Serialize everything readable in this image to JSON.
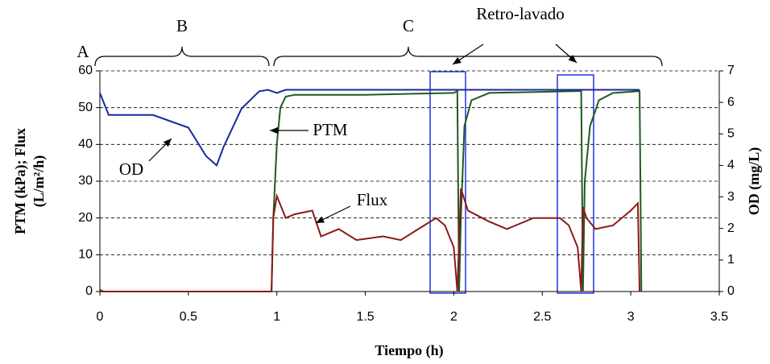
{
  "chart_data": {
    "type": "line",
    "xlabel": "Tiempo (h)",
    "ylabel": [
      "PTM (kPa); Flux",
      "(L/m²/h)"
    ],
    "y2label": "OD (mg/L)",
    "xlim": [
      0,
      3.5
    ],
    "xticks": [
      0,
      0.5,
      1,
      1.5,
      2,
      2.5,
      3,
      3.5
    ],
    "ylim": [
      0,
      60
    ],
    "yticks": [
      0,
      10,
      20,
      30,
      40,
      50,
      60
    ],
    "y2lim": [
      0,
      7
    ],
    "y2ticks": [
      0,
      1,
      2,
      3,
      4,
      5,
      6,
      7
    ],
    "grid": true,
    "annotations": [
      "A",
      "B",
      "C",
      "Retro-lavado",
      "OD",
      "PTM",
      "Flux"
    ],
    "series": [
      {
        "name": "PTM",
        "color": "#1f5a1f",
        "x": [
          0,
          0.02,
          0.97,
          0.98,
          1.0,
          1.02,
          1.05,
          1.1,
          1.5,
          2.0,
          2.02,
          2.03,
          2.04,
          2.06,
          2.1,
          2.2,
          2.7,
          2.72,
          2.73,
          2.74,
          2.77,
          2.82,
          2.9,
          3.05,
          3.06
        ],
        "values": [
          0.5,
          0,
          0,
          20,
          40,
          50,
          53,
          53.5,
          53.5,
          54,
          54.5,
          0,
          20,
          45,
          52,
          54,
          54.5,
          54.5,
          0,
          30,
          45,
          52,
          54,
          54.5,
          0
        ]
      },
      {
        "name": "Flux",
        "color": "#8b1a1a",
        "x": [
          0,
          0.97,
          0.98,
          1.0,
          1.05,
          1.1,
          1.2,
          1.25,
          1.35,
          1.45,
          1.6,
          1.7,
          1.8,
          1.9,
          1.95,
          2.0,
          2.02,
          2.04,
          2.08,
          2.2,
          2.3,
          2.45,
          2.6,
          2.65,
          2.7,
          2.72,
          2.73,
          2.75,
          2.8,
          2.9,
          3.0,
          3.04,
          3.05
        ],
        "values": [
          0,
          0,
          20,
          26,
          20,
          21,
          22,
          15,
          17,
          14,
          15,
          14,
          17,
          20,
          18,
          12,
          0,
          28,
          22,
          19,
          17,
          20,
          20,
          18,
          12,
          0,
          23,
          20,
          17,
          18,
          22,
          24,
          0
        ]
      },
      {
        "name": "OD",
        "color": "#1a2a9a",
        "axis": "y2",
        "x": [
          0,
          0.05,
          0.3,
          0.5,
          0.6,
          0.66,
          0.7,
          0.8,
          0.9,
          0.95,
          1.0,
          1.05,
          3.05
        ],
        "values": [
          6.3,
          5.6,
          5.6,
          5.2,
          4.3,
          4.0,
          4.6,
          5.8,
          6.35,
          6.4,
          6.3,
          6.4,
          6.4
        ]
      }
    ]
  }
}
